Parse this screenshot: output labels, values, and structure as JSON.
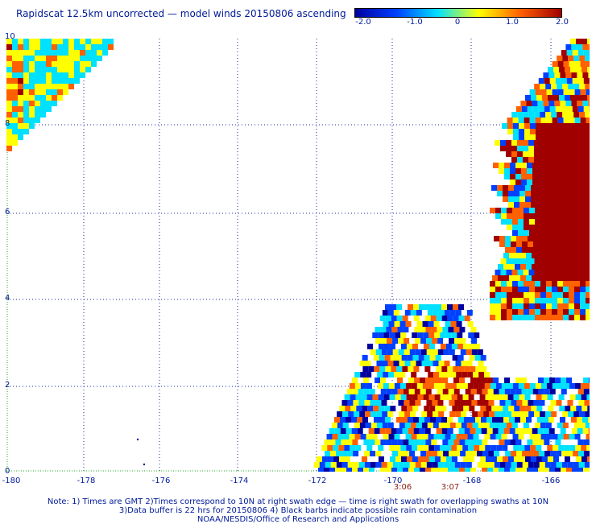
{
  "title": "Rapidscat 12.5km uncorrected — model winds 20150806 ascending",
  "colorbar": {
    "labels": [
      "-2.0",
      "-1.0",
      "0",
      "1.0",
      "2.0"
    ],
    "range": [
      -2.0,
      2.0
    ],
    "colors": [
      "#0000a0",
      "#0040ff",
      "#00e0ff",
      "#ffff00",
      "#ff6000",
      "#a00000"
    ]
  },
  "axes": {
    "lat_labels": [
      "10",
      "8",
      "6",
      "4",
      "2",
      "0"
    ],
    "lon_labels": [
      "-180",
      "-178",
      "-176",
      "-174",
      "-172",
      "-170",
      "-168",
      "-166"
    ]
  },
  "times": [
    "3:06",
    "3:07"
  ],
  "notes": {
    "line1": "Note: 1) Times are GMT 2)Times correspond to 10N at right swath edge — time is right swath for overlapping swaths at 10N",
    "line2": "3)Data buffer is 22 hrs for 20150806 4) Black barbs indicate possible rain contamination",
    "line3": "NOAA/NESDIS/Office of Research and Applications"
  }
}
